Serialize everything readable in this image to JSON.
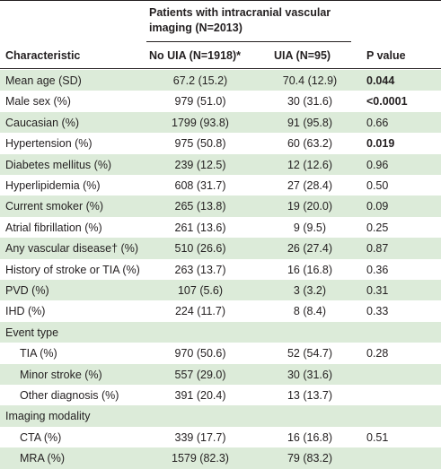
{
  "table": {
    "group_header": "Patients with intracranial vascular imaging (N=2013)",
    "columns": [
      "Characteristic",
      "No UIA (N=1918)*",
      "UIA (N=95)",
      "P value"
    ],
    "rows": [
      {
        "label": "Mean age (SD)",
        "no_uia": "67.2 (15.2)",
        "uia": "70.4 (12.9)",
        "p": "0.044",
        "bold": true
      },
      {
        "label": "Male sex (%)",
        "no_uia": "979 (51.0)",
        "uia": "30 (31.6)",
        "p": "<0.0001",
        "bold": true
      },
      {
        "label": "Caucasian (%)",
        "no_uia": "1799 (93.8)",
        "uia": "91 (95.8)",
        "p": "0.66"
      },
      {
        "label": "Hypertension (%)",
        "no_uia": "975 (50.8)",
        "uia": "60 (63.2)",
        "p": "0.019",
        "bold": true
      },
      {
        "label": "Diabetes mellitus (%)",
        "no_uia": "239 (12.5)",
        "uia": "12 (12.6)",
        "p": "0.96"
      },
      {
        "label": "Hyperlipidemia (%)",
        "no_uia": "608 (31.7)",
        "uia": "27 (28.4)",
        "p": "0.50"
      },
      {
        "label": "Current smoker (%)",
        "no_uia": "265 (13.8)",
        "uia": "19 (20.0)",
        "p": "0.09"
      },
      {
        "label": "Atrial fibrillation (%)",
        "no_uia": "261 (13.6)",
        "uia": "9 (9.5)",
        "p": "0.25"
      },
      {
        "label": "Any vascular disease† (%)",
        "no_uia": "510 (26.6)",
        "uia": "26 (27.4)",
        "p": "0.87"
      },
      {
        "label": "History of stroke or TIA (%)",
        "no_uia": "263 (13.7)",
        "uia": "16 (16.8)",
        "p": "0.36"
      },
      {
        "label": "PVD (%)",
        "no_uia": "107 (5.6)",
        "uia": "3 (3.2)",
        "p": "0.31"
      },
      {
        "label": "IHD (%)",
        "no_uia": "224 (11.7)",
        "uia": "8 (8.4)",
        "p": "0.33"
      },
      {
        "label": "Event type"
      },
      {
        "label": "TIA (%)",
        "no_uia": "970 (50.6)",
        "uia": "52 (54.7)",
        "p": "0.28",
        "indent": true
      },
      {
        "label": "Minor stroke (%)",
        "no_uia": "557 (29.0)",
        "uia": "30 (31.6)",
        "indent": true
      },
      {
        "label": "Other diagnosis (%)",
        "no_uia": "391 (20.4)",
        "uia": "13 (13.7)",
        "indent": true
      },
      {
        "label": "Imaging modality"
      },
      {
        "label": "CTA (%)",
        "no_uia": "339 (17.7)",
        "uia": "16 (16.8)",
        "p": "0.51",
        "indent": true
      },
      {
        "label": "MRA (%)",
        "no_uia": "1579 (82.3)",
        "uia": "79 (83.2)",
        "indent": true
      }
    ]
  }
}
